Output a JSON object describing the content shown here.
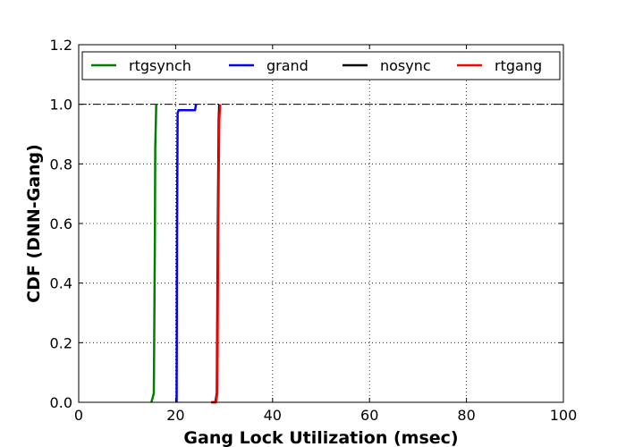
{
  "chart_data": {
    "type": "line",
    "title": "",
    "xlabel": "Gang Lock Utilization (msec)",
    "ylabel": "CDF (DNN-Gang)",
    "xlim": [
      0,
      100
    ],
    "ylim": [
      0.0,
      1.2
    ],
    "x_ticks": [
      "0",
      "20",
      "40",
      "60",
      "80",
      "100"
    ],
    "y_ticks": [
      "0.0",
      "0.2",
      "0.4",
      "0.6",
      "0.8",
      "1.0",
      "1.2"
    ],
    "grid": "y-major dotted",
    "legend_position": "top",
    "reference_line": {
      "y": 1.0,
      "style": "dash-dot",
      "color": "#000000"
    },
    "series": [
      {
        "name": "rtgsynch",
        "color": "#008000",
        "points": [
          [
            15.0,
            0.0
          ],
          [
            15.5,
            0.03
          ],
          [
            15.7,
            0.5
          ],
          [
            15.8,
            0.85
          ],
          [
            16.0,
            1.0
          ]
        ]
      },
      {
        "name": "grand",
        "color": "#0000ff",
        "points": [
          [
            20.2,
            0.0
          ],
          [
            20.3,
            0.6
          ],
          [
            20.4,
            0.97
          ],
          [
            20.6,
            0.98
          ],
          [
            24.0,
            0.98
          ],
          [
            24.2,
            1.0
          ]
        ]
      },
      {
        "name": "nosync",
        "color": "#000000",
        "points": [
          [
            27.5,
            0.0
          ],
          [
            28.2,
            0.0
          ],
          [
            28.5,
            0.03
          ],
          [
            28.7,
            0.6
          ],
          [
            28.9,
            0.95
          ],
          [
            29.0,
            1.0
          ]
        ]
      },
      {
        "name": "rtgang",
        "color": "#ff0000",
        "points": [
          [
            27.3,
            0.0
          ],
          [
            28.3,
            0.0
          ],
          [
            28.6,
            0.03
          ],
          [
            28.8,
            0.6
          ],
          [
            29.0,
            0.95
          ],
          [
            29.2,
            1.0
          ]
        ]
      }
    ]
  }
}
